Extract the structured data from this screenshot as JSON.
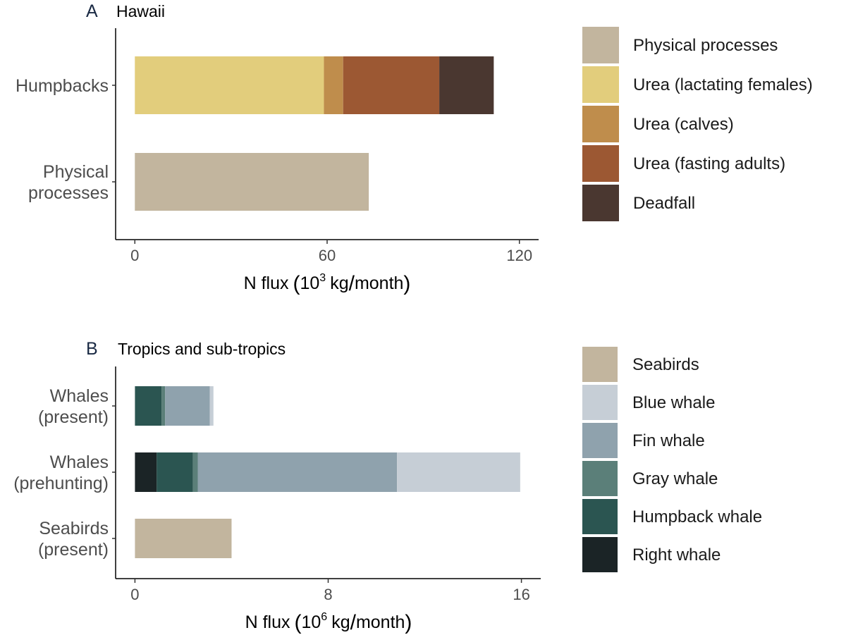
{
  "chart_data": [
    {
      "type": "bar",
      "orientation": "horizontal",
      "stacked": true,
      "panel_letter": "A",
      "title": "Hawaii",
      "categories": [
        "Humpbacks",
        "Physical processes"
      ],
      "category_lines": [
        [
          "Humpbacks"
        ],
        [
          "Physical",
          "processes"
        ]
      ],
      "xlabel": {
        "prefix": "N flux",
        "base": "10",
        "exponent": "3",
        "unit": "kg",
        "per": "month"
      },
      "xlim": [
        -6,
        126
      ],
      "xticks": [
        0,
        60,
        120
      ],
      "xtick_labels": [
        "0",
        "60",
        "120"
      ],
      "grid": false,
      "series": [
        {
          "name": "Physical processes",
          "color": "#c2b59e",
          "values": [
            0,
            73
          ]
        },
        {
          "name": "Urea (lactating females)",
          "color": "#e2cd7c",
          "values": [
            59,
            0
          ]
        },
        {
          "name": "Urea (calves)",
          "color": "#bf8d4c",
          "values": [
            6,
            0
          ]
        },
        {
          "name": "Urea (fasting adults)",
          "color": "#9c5833",
          "values": [
            30,
            0
          ]
        },
        {
          "name": "Deadfall",
          "color": "#4a3730",
          "values": [
            17,
            0
          ]
        }
      ],
      "legend": [
        "Physical processes",
        "Urea (lactating females)",
        "Urea (calves)",
        "Urea (fasting adults)",
        "Deadfall"
      ],
      "legend_position": "right"
    },
    {
      "type": "bar",
      "orientation": "horizontal",
      "stacked": true,
      "panel_letter": "B",
      "title": "Tropics and sub-tropics",
      "categories": [
        "Whales (present)",
        "Whales (prehunting)",
        "Seabirds (present)"
      ],
      "category_lines": [
        [
          "Whales",
          "(present)"
        ],
        [
          "Whales",
          "(prehunting)"
        ],
        [
          "Seabirds",
          "(present)"
        ]
      ],
      "xlabel": {
        "prefix": "N flux",
        "base": "10",
        "exponent": "6",
        "unit": "kg",
        "per": "month"
      },
      "xlim": [
        -0.8,
        16.8
      ],
      "xticks": [
        0,
        8,
        16
      ],
      "xtick_labels": [
        "0",
        "8",
        "16"
      ],
      "grid": false,
      "series": [
        {
          "name": "Right whale",
          "color": "#1b2426",
          "values": [
            0.0,
            0.9,
            0
          ]
        },
        {
          "name": "Humpback whale",
          "color": "#2b5551",
          "values": [
            1.1,
            1.5,
            0
          ]
        },
        {
          "name": "Gray whale",
          "color": "#5b7f79",
          "values": [
            0.15,
            0.2,
            0
          ]
        },
        {
          "name": "Fin whale",
          "color": "#8fa2ad",
          "values": [
            1.85,
            8.25,
            0
          ]
        },
        {
          "name": "Blue whale",
          "color": "#c6ced6",
          "values": [
            0.15,
            5.1,
            0
          ]
        },
        {
          "name": "Seabirds",
          "color": "#c2b59e",
          "values": [
            0,
            0,
            4.0
          ]
        }
      ],
      "legend": [
        "Seabirds",
        "Blue whale",
        "Fin whale",
        "Gray whale",
        "Humpback whale",
        "Right whale"
      ],
      "legend_position": "right"
    }
  ]
}
